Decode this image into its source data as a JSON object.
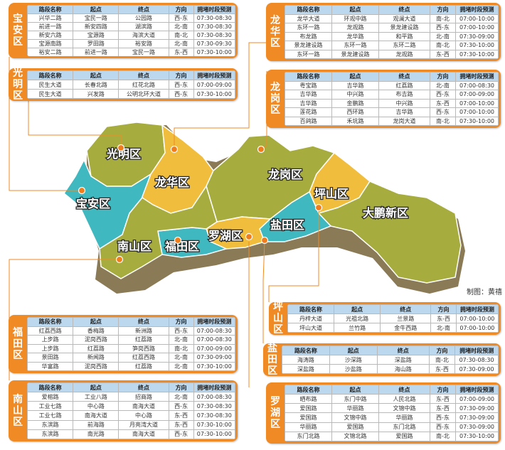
{
  "credit": "制图：黄禧",
  "headers": [
    "路段名称",
    "起点",
    "终点",
    "方向",
    "拥堵时段预测"
  ],
  "districts": [
    {
      "id": "baoan",
      "name": "宝安区",
      "rows": [
        [
          "兴华二路",
          "宝民一路",
          "公园路",
          "西-东",
          "07:30-08:30"
        ],
        [
          "前进一路",
          "新安四路",
          "湖滨路",
          "北-南",
          "07:30-08:30"
        ],
        [
          "新安六路",
          "宝源路",
          "海滨大道",
          "南-北",
          "07:30-08:30"
        ],
        [
          "宝源南路",
          "罗田路",
          "裕安路",
          "北-南",
          "07:30-09:30"
        ],
        [
          "裕安二路",
          "前进一路",
          "宝民一路",
          "东-西",
          "07:30-10:00"
        ]
      ]
    },
    {
      "id": "guangming",
      "name": "光明区",
      "rows": [
        [
          "民生大道",
          "长春北路",
          "红花北路",
          "西-东",
          "07:00-09:00"
        ],
        [
          "民生大道",
          "兴发路",
          "公明北环大道",
          "西-东",
          "07:30-10:00"
        ]
      ]
    },
    {
      "id": "longhua",
      "name": "龙华区",
      "rows": [
        [
          "龙华大道",
          "环观中路",
          "观澜大道",
          "南-北",
          "07:00-10:00"
        ],
        [
          "东环一路",
          "龙观路",
          "景龙建设路",
          "西-东",
          "07:00-10:00"
        ],
        [
          "布龙路",
          "龙华路",
          "和平路",
          "北-南",
          "07:30-09:00"
        ],
        [
          "景龙建设路",
          "东环一路",
          "东环二路",
          "南-北",
          "07:30-10:00"
        ],
        [
          "东环一路",
          "景龙建设路",
          "龙观路",
          "东-西",
          "07:30-10:00"
        ]
      ]
    },
    {
      "id": "longgang",
      "name": "龙岗区",
      "rows": [
        [
          "粤宝路",
          "吉华路",
          "红荔路",
          "北-南",
          "07:00-08:30"
        ],
        [
          "吉华路",
          "中兴路",
          "布吉路",
          "西-东",
          "07:00-09:00"
        ],
        [
          "吉华路",
          "金鹏路",
          "中兴路",
          "东-西",
          "07:00-10:00"
        ],
        [
          "莲花路",
          "西环路",
          "吉华路",
          "西-东",
          "07:00-10:00"
        ],
        [
          "百鸽路",
          "禾坑路",
          "龙岗大道",
          "南-北",
          "07:30-10:00"
        ]
      ]
    },
    {
      "id": "futian",
      "name": "福田区",
      "rows": [
        [
          "红荔西路",
          "香梅路",
          "新洲路",
          "西-东",
          "07:00-08:30"
        ],
        [
          "上步路",
          "泥岗西路",
          "红荔路",
          "北-南",
          "07:00-08:30"
        ],
        [
          "上步路",
          "红荔路",
          "笋岗西路",
          "南-北",
          "07:00-09:00"
        ],
        [
          "景田路",
          "新闻路",
          "红荔西路",
          "北-南",
          "07:30-09:00"
        ],
        [
          "华富路",
          "泥岗西路",
          "红荔路",
          "北-南",
          "07:30-10:00"
        ]
      ]
    },
    {
      "id": "nanshan",
      "name": "南山区",
      "rows": [
        [
          "爱榕路",
          "工业八路",
          "招商路",
          "北-南",
          "07:00-08:30"
        ],
        [
          "工业七路",
          "中心路",
          "南海大道",
          "西-东",
          "07:30-08:30"
        ],
        [
          "工业七路",
          "南海大道",
          "中心路",
          "东-西",
          "07:30-08:30"
        ],
        [
          "东滨路",
          "前海路",
          "月亮湾大道",
          "东-西",
          "07:30-10:00"
        ],
        [
          "东滨路",
          "南光路",
          "南海大道",
          "西-东",
          "07:30-10:00"
        ]
      ]
    },
    {
      "id": "pingshan",
      "name": "坪山区",
      "rows": [
        [
          "丹梓大道",
          "光祖北路",
          "兰景路",
          "东-西",
          "07:00-10:00"
        ],
        [
          "坪山大道",
          "兰竹路",
          "金牛西路",
          "北-南",
          "07:00-10:00"
        ]
      ]
    },
    {
      "id": "yantian",
      "name": "盐田区",
      "rows": [
        [
          "海涛路",
          "沙深路",
          "深盐路",
          "南-北",
          "07:30-08:30"
        ],
        [
          "深盐路",
          "沙盐路",
          "海山路",
          "东-西",
          "07:30-09:00"
        ]
      ]
    },
    {
      "id": "luohu",
      "name": "罗湖区",
      "rows": [
        [
          "晒布路",
          "东门中路",
          "人民北路",
          "东-西",
          "07:00-09:00"
        ],
        [
          "爱国路",
          "华丽路",
          "文锦中路",
          "东-西",
          "07:30-09:00"
        ],
        [
          "爱国路",
          "文锦中路",
          "华丽路",
          "西-东",
          "07:30-09:00"
        ],
        [
          "华丽路",
          "爱国路",
          "东门北路",
          "西-东",
          "07:30-09:00"
        ],
        [
          "东门北路",
          "文锦北路",
          "爱国路",
          "南-北",
          "07:30-10:00"
        ]
      ]
    }
  ],
  "map_labels": {
    "guangming": "光明区",
    "baoan": "宝安区",
    "longhua": "龙华区",
    "longgang": "龙岗区",
    "pingshan": "坪山区",
    "dapeng": "大鹏新区",
    "nanshan": "南山区",
    "futian": "福田区",
    "luohu": "罗湖区",
    "yantian": "盐田区"
  },
  "colors": {
    "panel": "#f08a24",
    "header": "#bcd8ee",
    "olive": "#a6ad3e",
    "teal": "#3fb8bf",
    "gold": "#f0bd3d",
    "dot": "#f07d1c"
  }
}
